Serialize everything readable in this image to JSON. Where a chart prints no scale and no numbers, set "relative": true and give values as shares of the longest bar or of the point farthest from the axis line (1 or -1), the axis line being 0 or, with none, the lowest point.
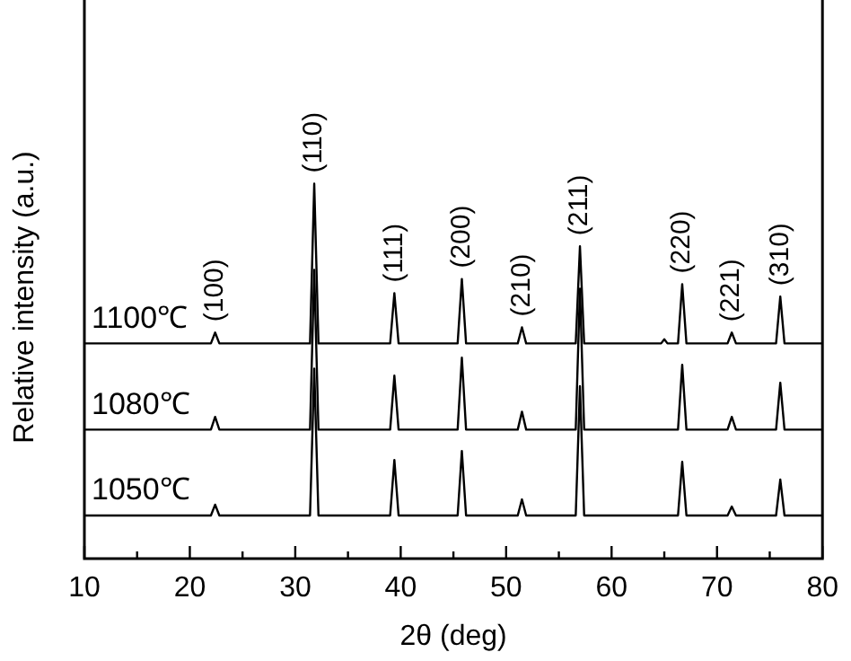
{
  "chart_data": {
    "type": "line",
    "relative": true,
    "xlabel": "2θ (deg)",
    "ylabel": "Relative intensity (a.u.)",
    "xlim": [
      10,
      80
    ],
    "xticks": [
      10,
      {
        "value": 15,
        "label": null
      },
      20,
      {
        "value": 25,
        "label": null
      },
      30,
      {
        "value": 35,
        "label": null
      },
      40,
      {
        "value": 45,
        "label": null
      },
      50,
      {
        "value": 55,
        "label": null
      },
      60,
      {
        "value": 65,
        "label": null
      },
      70,
      {
        "value": 75,
        "label": null
      },
      80
    ],
    "grid": false,
    "legend": false,
    "marker": "none",
    "line_style": "solid",
    "series": [
      {
        "name": "1050℃",
        "color": "#000000",
        "x": [
          10,
          22.0,
          22.4,
          22.8,
          31.4,
          31.8,
          32.2,
          39.0,
          39.4,
          39.8,
          45.4,
          45.8,
          46.2,
          51.1,
          51.5,
          51.9,
          56.6,
          57.0,
          57.4,
          66.3,
          66.7,
          67.1,
          71.0,
          71.4,
          71.8,
          75.6,
          76.0,
          76.4,
          80
        ],
        "values": [
          0.115,
          0.115,
          0.144,
          0.115,
          0.115,
          0.507,
          0.115,
          0.115,
          0.263,
          0.115,
          0.115,
          0.287,
          0.115,
          0.115,
          0.158,
          0.115,
          0.115,
          0.46,
          0.115,
          0.115,
          0.258,
          0.115,
          0.115,
          0.139,
          0.115,
          0.115,
          0.211,
          0.115,
          0.115
        ]
      },
      {
        "name": "1080℃",
        "color": "#000000",
        "x": [
          10,
          22.0,
          22.4,
          22.8,
          31.4,
          31.8,
          32.2,
          39.0,
          39.4,
          39.8,
          45.4,
          45.8,
          46.2,
          51.1,
          51.5,
          51.9,
          56.6,
          57.0,
          57.4,
          66.3,
          66.7,
          67.1,
          71.0,
          71.4,
          71.8,
          75.6,
          76.0,
          76.4,
          80
        ],
        "values": [
          0.344,
          0.344,
          0.378,
          0.344,
          0.344,
          0.77,
          0.344,
          0.344,
          0.488,
          0.344,
          0.344,
          0.536,
          0.344,
          0.344,
          0.392,
          0.344,
          0.344,
          0.72,
          0.344,
          0.344,
          0.517,
          0.344,
          0.344,
          0.378,
          0.344,
          0.344,
          0.469,
          0.344,
          0.344
        ]
      },
      {
        "name": "1100℃",
        "color": "#000000",
        "x": [
          10,
          22.0,
          22.4,
          22.8,
          31.4,
          31.8,
          32.2,
          39.0,
          39.4,
          39.8,
          45.4,
          45.8,
          46.2,
          51.1,
          51.5,
          51.9,
          56.6,
          57.0,
          57.4,
          64.7,
          65.0,
          65.3,
          66.3,
          66.7,
          67.1,
          71.0,
          71.4,
          71.8,
          75.6,
          76.0,
          76.4,
          80
        ],
        "values": [
          0.574,
          0.574,
          0.603,
          0.574,
          0.574,
          1.0,
          0.574,
          0.574,
          0.708,
          0.574,
          0.574,
          0.746,
          0.574,
          0.574,
          0.617,
          0.574,
          0.574,
          0.833,
          0.574,
          0.574,
          0.585,
          0.574,
          0.574,
          0.732,
          0.574,
          0.574,
          0.603,
          0.574,
          0.574,
          0.699,
          0.574,
          0.574
        ]
      }
    ],
    "annotations": [
      {
        "text": "(100)",
        "x": 22.4,
        "y": 0.603
      },
      {
        "text": "(110)",
        "x": 31.8,
        "y": 1.0
      },
      {
        "text": "(111)",
        "x": 39.4,
        "y": 0.708
      },
      {
        "text": "(200)",
        "x": 45.8,
        "y": 0.746
      },
      {
        "text": "(210)",
        "x": 51.5,
        "y": 0.617
      },
      {
        "text": "(211)",
        "x": 57.0,
        "y": 0.833
      },
      {
        "text": "(220)",
        "x": 66.7,
        "y": 0.732
      },
      {
        "text": "(221)",
        "x": 71.4,
        "y": 0.603
      },
      {
        "text": "(310)",
        "x": 76.0,
        "y": 0.699
      }
    ]
  }
}
